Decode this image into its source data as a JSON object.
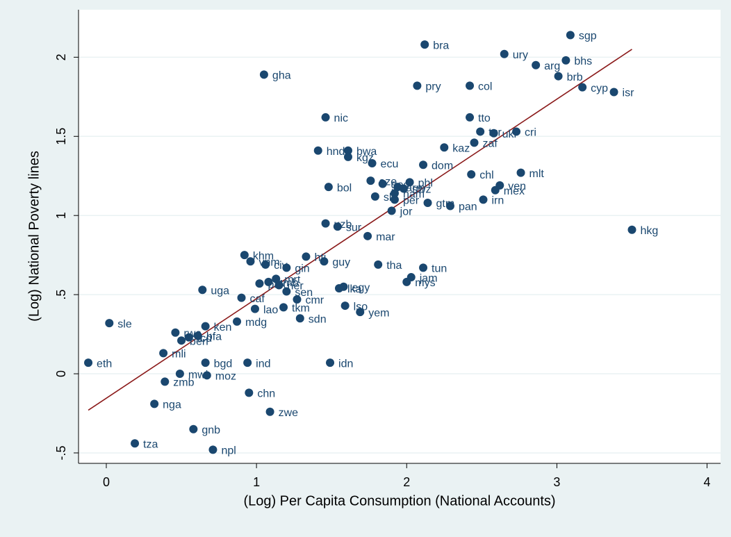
{
  "chart_data": {
    "type": "scatter",
    "x_label": "(Log) Per Capita Consumption (National Accounts)",
    "y_label": "(Log) National Poverty lines",
    "color": "#1a476f",
    "labels": [
      "sgp",
      "bra",
      "ury",
      "bhs",
      "arg",
      "gha",
      "brb",
      "pry",
      "col",
      "cyp",
      "isr",
      "nic",
      "tto",
      "cri",
      "ukr",
      "tur",
      "zaf",
      "kaz",
      "hnd",
      "bwa",
      "kgz",
      "ecu",
      "dom",
      "mlt",
      "chl",
      "aze",
      "geo",
      "arm",
      "phl",
      "swz",
      "ven",
      "mex",
      "bol",
      "slv",
      "per",
      "nam",
      "gtm",
      "pan",
      "irn",
      "jor",
      "hkg",
      "uzb",
      "sur",
      "mar",
      "khm",
      "vnm",
      "civ",
      "gin",
      "hti",
      "guy",
      "tha",
      "tun",
      "jam",
      "mys",
      "egy",
      "lka",
      "uga",
      "pak",
      "gmb",
      "mrt",
      "ner",
      "sen",
      "caf",
      "cmr",
      "lao",
      "tkm",
      "lso",
      "yem",
      "sdn",
      "sle",
      "mdg",
      "ken",
      "rwa",
      "ben",
      "tcd",
      "bfa",
      "mli",
      "eth",
      "bgd",
      "ind",
      "idn",
      "mwi",
      "moz",
      "zmb",
      "chn",
      "nga",
      "zwe",
      "gnb",
      "tza",
      "npl"
    ],
    "x": [
      3.09,
      2.12,
      2.65,
      3.06,
      2.86,
      1.05,
      3.01,
      2.07,
      2.42,
      3.17,
      3.38,
      1.46,
      2.42,
      2.73,
      2.58,
      2.49,
      2.45,
      2.25,
      1.41,
      1.61,
      1.61,
      1.77,
      2.11,
      2.76,
      2.43,
      1.76,
      1.84,
      1.94,
      2.02,
      1.98,
      2.62,
      2.59,
      1.48,
      1.79,
      1.92,
      1.92,
      2.14,
      2.29,
      2.51,
      1.9,
      3.5,
      1.46,
      1.54,
      1.74,
      0.92,
      0.96,
      1.06,
      1.2,
      1.33,
      1.45,
      1.81,
      2.11,
      2.03,
      2.0,
      1.58,
      1.55,
      0.64,
      1.02,
      1.08,
      1.13,
      1.15,
      1.2,
      0.9,
      1.27,
      0.99,
      1.18,
      1.59,
      1.69,
      1.29,
      0.02,
      0.87,
      0.66,
      0.46,
      0.5,
      0.55,
      0.61,
      0.38,
      -0.12,
      0.66,
      0.94,
      1.49,
      0.49,
      0.67,
      0.39,
      0.95,
      0.32,
      1.09,
      0.58,
      0.19,
      0.71
    ],
    "values": [
      2.14,
      2.08,
      2.02,
      1.98,
      1.95,
      1.89,
      1.88,
      1.82,
      1.82,
      1.81,
      1.78,
      1.62,
      1.62,
      1.53,
      1.52,
      1.53,
      1.46,
      1.43,
      1.41,
      1.41,
      1.37,
      1.33,
      1.32,
      1.27,
      1.26,
      1.22,
      1.2,
      1.18,
      1.21,
      1.17,
      1.19,
      1.16,
      1.18,
      1.12,
      1.1,
      1.14,
      1.08,
      1.06,
      1.1,
      1.03,
      0.91,
      0.95,
      0.93,
      0.87,
      0.75,
      0.71,
      0.69,
      0.67,
      0.74,
      0.71,
      0.69,
      0.67,
      0.61,
      0.58,
      0.55,
      0.54,
      0.53,
      0.57,
      0.58,
      0.6,
      0.56,
      0.52,
      0.48,
      0.47,
      0.41,
      0.42,
      0.43,
      0.39,
      0.35,
      0.32,
      0.33,
      0.3,
      0.26,
      0.21,
      0.23,
      0.24,
      0.13,
      0.07,
      0.07,
      0.07,
      0.07,
      0.0,
      -0.01,
      -0.05,
      -0.12,
      -0.19,
      -0.24,
      -0.35,
      -0.44,
      -0.48
    ],
    "fit_line": {
      "color": "#8b1a1a",
      "x": [
        -0.12,
        3.5
      ],
      "y": [
        -0.23,
        2.05
      ]
    },
    "xlim": [
      -0.185,
      4.09
    ],
    "ylim": [
      -0.566,
      2.3
    ],
    "xticks": [
      0,
      1,
      2,
      3,
      4
    ],
    "yticks": [
      {
        "value": -0.5,
        "label": "-.5"
      },
      0,
      {
        "value": 0.5,
        "label": ".5"
      },
      1,
      1.5,
      2
    ],
    "grid": true
  }
}
